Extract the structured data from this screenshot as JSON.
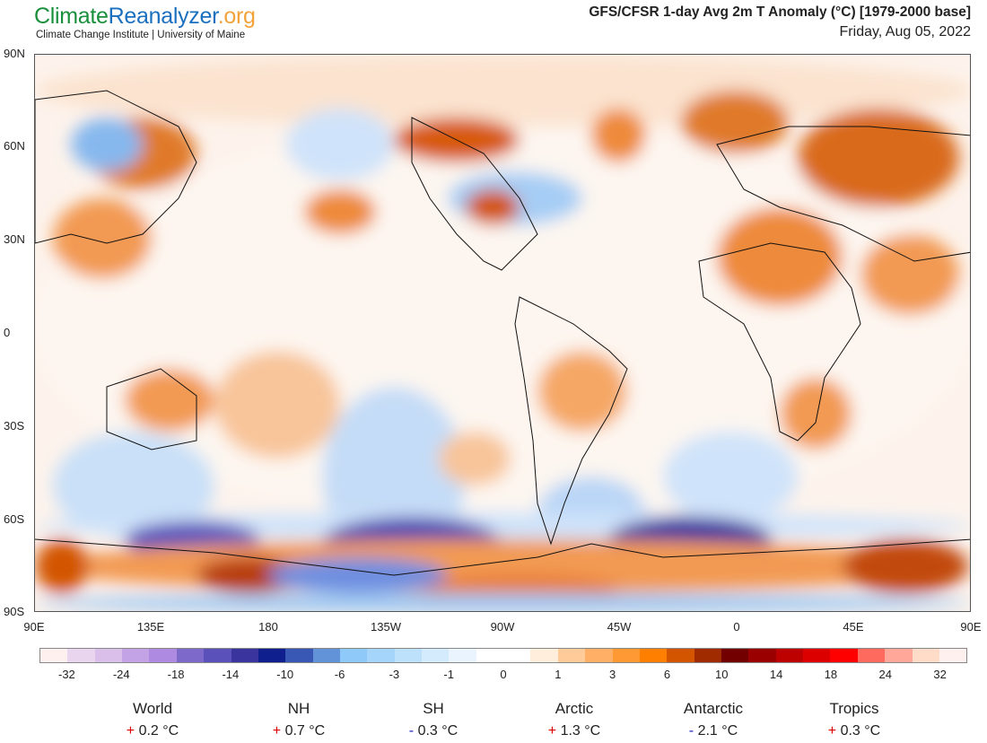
{
  "header": {
    "logo_parts": [
      "Climate",
      "Reanalyzer",
      ".org"
    ],
    "subtitle": "Climate Change Institute | University of Maine",
    "title": "GFS/CFSR 1-day Avg 2m T Anomaly (°C) [1979-2000 base]",
    "date": "Friday, Aug 05, 2022"
  },
  "map": {
    "lat_labels": [
      "90N",
      "60N",
      "30N",
      "0",
      "30S",
      "60S",
      "90S"
    ],
    "lon_labels": [
      "90E",
      "135E",
      "180",
      "135W",
      "90W",
      "45W",
      "0",
      "45E",
      "90E"
    ]
  },
  "colorbar": {
    "colors": [
      "#fff0f0",
      "#ead5ee",
      "#d9bfe9",
      "#c3a2e6",
      "#ae8be0",
      "#7c69c9",
      "#5a52ba",
      "#3a359e",
      "#101f8e",
      "#3957b4",
      "#6292d8",
      "#8ec9fa",
      "#a6d5fb",
      "#bde0fb",
      "#d4eafd",
      "#eaf4fe",
      "#ffffff",
      "#ffffff",
      "#ffeedb",
      "#ffcc99",
      "#ffb066",
      "#ff9933",
      "#ff8000",
      "#d35500",
      "#a12b00",
      "#730000",
      "#9a0000",
      "#bd0000",
      "#dd0000",
      "#ff0000",
      "#ff6a5e",
      "#ffa89a",
      "#ffdcc8",
      "#fff0f0"
    ],
    "labels": [
      "-32",
      "-24",
      "-18",
      "-14",
      "-10",
      "-6",
      "-3",
      "-1",
      "0",
      "1",
      "3",
      "6",
      "10",
      "14",
      "18",
      "24",
      "32"
    ]
  },
  "stats": [
    {
      "label": "World",
      "sign": "+",
      "value": "0.2 °C"
    },
    {
      "label": "NH",
      "sign": "+",
      "value": "0.7 °C"
    },
    {
      "label": "SH",
      "sign": "-",
      "value": "0.3 °C"
    },
    {
      "label": "Arctic",
      "sign": "+",
      "value": "1.3 °C"
    },
    {
      "label": "Antarctic",
      "sign": "-",
      "value": "2.1 °C"
    },
    {
      "label": "Tropics",
      "sign": "+",
      "value": "0.3 °C"
    }
  ]
}
